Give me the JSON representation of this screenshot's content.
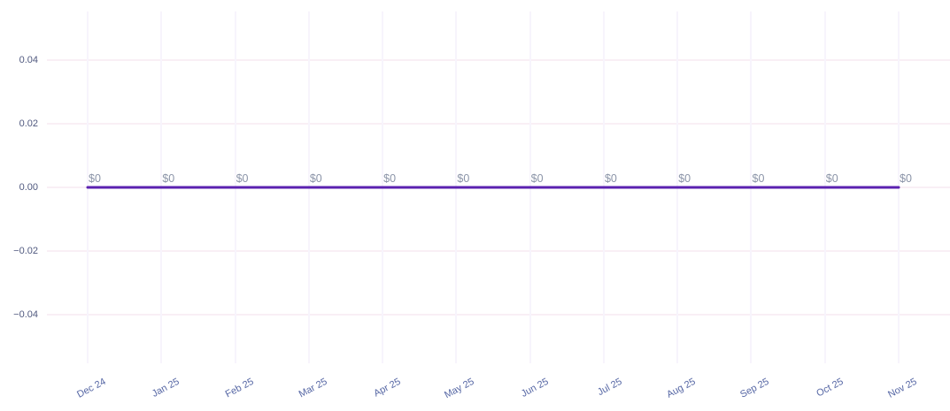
{
  "chart_data": {
    "type": "line",
    "title": "",
    "xlabel": "",
    "ylabel": "",
    "categories": [
      "Dec 24",
      "Jan 25",
      "Feb 25",
      "Mar 25",
      "Apr 25",
      "May 25",
      "Jun 25",
      "Jul 25",
      "Aug 25",
      "Sep 25",
      "Oct 25",
      "Nov 25"
    ],
    "series": [
      {
        "name": "amount",
        "values": [
          0,
          0,
          0,
          0,
          0,
          0,
          0,
          0,
          0,
          0,
          0,
          0
        ]
      }
    ],
    "point_labels": [
      "$0",
      "$0",
      "$0",
      "$0",
      "$0",
      "$0",
      "$0",
      "$0",
      "$0",
      "$0",
      "$0",
      "$0"
    ],
    "y_ticks": [
      {
        "label": "0.04",
        "value": 0.04
      },
      {
        "label": "0.02",
        "value": 0.02
      },
      {
        "label": "0.00",
        "value": 0
      },
      {
        "label": "−0.02",
        "value": -0.02
      },
      {
        "label": "−0.04",
        "value": -0.04
      }
    ],
    "ylim": [
      -0.055,
      0.055
    ],
    "grid": true,
    "legend_position": "none",
    "colors": {
      "line": "#5b21b0",
      "point_label": "#8b94a8",
      "y_tick_label": "#50597f",
      "x_tick_label": "#5566a4",
      "h_gridline": "#f9eff5",
      "v_gridline": "#f7f4fc",
      "background": "#ffffff"
    }
  }
}
